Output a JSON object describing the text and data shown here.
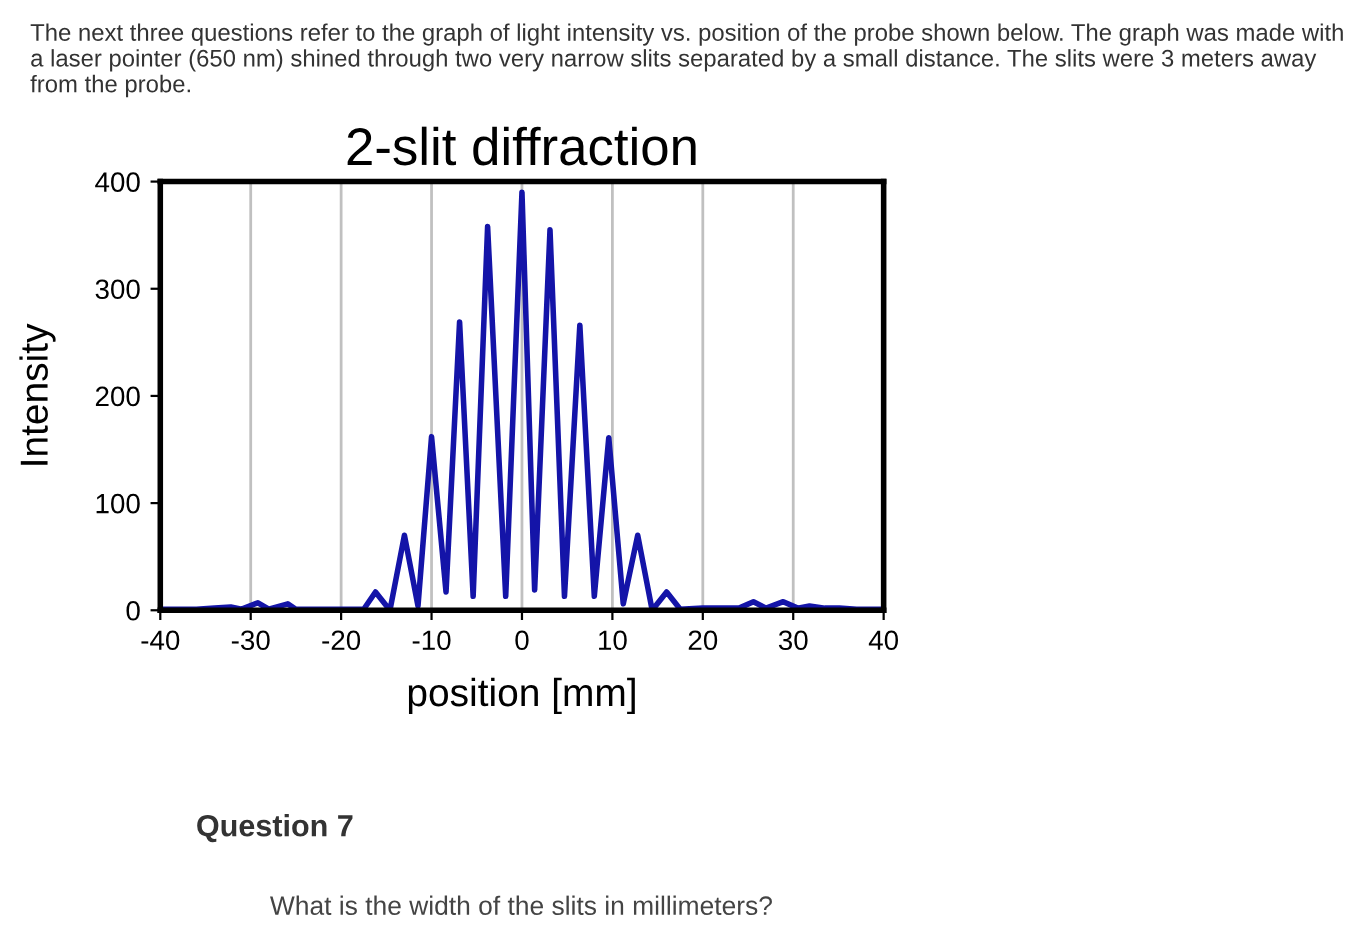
{
  "chart_data": {
    "type": "line",
    "title": "2-slit diffraction",
    "xlabel": "position [mm]",
    "ylabel": "Intensity",
    "annotations": [
      "The next three questions refer to the graph of light intensity vs. position of the probe shown below. The graph was made with a laser pointer (650 nm) shined through two very narrow slits separated by a small distance. The slits were 3 meters away from the probe.",
      "Question 7",
      "What is the width of the slits in millimeters?"
    ],
    "x": [
      -40,
      -36,
      -34,
      -32.2,
      -31,
      -29.2,
      -28,
      -25.9,
      -25,
      -22,
      -19,
      -17.5,
      -16.2,
      -14.6,
      -13,
      -11.5,
      -10,
      -8.4,
      -6.9,
      -5.4,
      -3.8,
      -1.8,
      0,
      1.4,
      3.1,
      4.7,
      6.4,
      8,
      9.6,
      11.2,
      12.8,
      14.4,
      16,
      17.5,
      20,
      22,
      24,
      25.6,
      27,
      28.9,
      30.5,
      31.8,
      33.5,
      35.1,
      37,
      40
    ],
    "series": [
      {
        "color": "#1414a8",
        "values": [
          1,
          1,
          2,
          3,
          1,
          7,
          1,
          6,
          1,
          1,
          1,
          1,
          17,
          0,
          70,
          4,
          162,
          17,
          269,
          13,
          358,
          13,
          390,
          19,
          355,
          13,
          266,
          13,
          161,
          6,
          70,
          0,
          17,
          1,
          2,
          2,
          2,
          8,
          2,
          8,
          2,
          4,
          2,
          2,
          1,
          1
        ]
      }
    ],
    "xlim": [
      -40,
      40
    ],
    "xticks": [
      -40,
      -30,
      -20,
      -10,
      0,
      10,
      20,
      30,
      40
    ],
    "ylim": [
      0,
      400
    ],
    "yticks": [
      0,
      100,
      200,
      300,
      400
    ],
    "grid": "x",
    "marker": "none",
    "line_style": "solid"
  }
}
